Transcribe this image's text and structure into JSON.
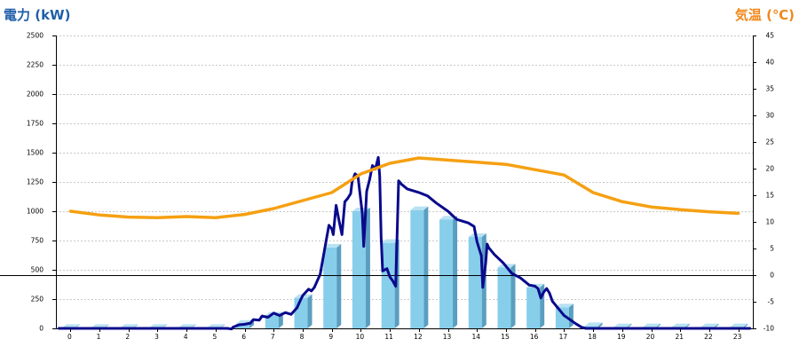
{
  "chart_data": {
    "type": "bar",
    "title_left": "電力 (kW)",
    "title_right": "気温 (℃)",
    "colors": {
      "title_left": "#1f5fa8",
      "title_right": "#f0881a",
      "bar_front": "#87ceeb",
      "bar_side": "#5a9ec0",
      "bar_top": "#b8e2f2",
      "power_line": "#0a0a8c",
      "temp_line": "#f5a012"
    },
    "left_axis": {
      "min": 0,
      "max": 2500,
      "step": 250,
      "ticks": [
        "0",
        "250",
        "500",
        "750",
        "1000",
        "1250",
        "1500",
        "1750",
        "2000",
        "2250",
        "2500"
      ]
    },
    "right_axis": {
      "min": -10,
      "max": 45,
      "step": 5,
      "ticks": [
        "-10",
        "-5",
        "0",
        "5",
        "10",
        "15",
        "20",
        "25",
        "30",
        "35",
        "40",
        "45"
      ]
    },
    "categories": [
      "0",
      "1",
      "2",
      "3",
      "4",
      "5",
      "6",
      "7",
      "8",
      "9",
      "10",
      "11",
      "12",
      "13",
      "14",
      "15",
      "16",
      "17",
      "18",
      "19",
      "20",
      "21",
      "22",
      "23"
    ],
    "grid": true,
    "series": [
      {
        "kind": "bar",
        "axis": "left",
        "values": [
          5,
          5,
          5,
          5,
          5,
          5,
          40,
          110,
          260,
          690,
          1000,
          730,
          1010,
          930,
          780,
          520,
          350,
          180,
          20,
          10,
          10,
          10,
          10,
          10
        ]
      },
      {
        "kind": "line",
        "axis": "left",
        "points": [
          [
            -0.4,
            0
          ],
          [
            5.4,
            0
          ],
          [
            5.55,
            -5
          ],
          [
            5.6,
            10
          ],
          [
            5.8,
            30
          ],
          [
            6.0,
            35
          ],
          [
            6.2,
            45
          ],
          [
            6.3,
            75
          ],
          [
            6.5,
            70
          ],
          [
            6.6,
            105
          ],
          [
            6.8,
            95
          ],
          [
            7.0,
            130
          ],
          [
            7.2,
            110
          ],
          [
            7.4,
            135
          ],
          [
            7.6,
            120
          ],
          [
            7.8,
            175
          ],
          [
            7.9,
            230
          ],
          [
            8.0,
            280
          ],
          [
            8.2,
            335
          ],
          [
            8.3,
            320
          ],
          [
            8.4,
            350
          ],
          [
            8.6,
            460
          ],
          [
            8.8,
            740
          ],
          [
            8.9,
            880
          ],
          [
            9.0,
            850
          ],
          [
            9.05,
            800
          ],
          [
            9.15,
            1050
          ],
          [
            9.25,
            920
          ],
          [
            9.35,
            800
          ],
          [
            9.45,
            1080
          ],
          [
            9.55,
            1110
          ],
          [
            9.65,
            1150
          ],
          [
            9.7,
            1250
          ],
          [
            9.8,
            1320
          ],
          [
            9.9,
            1300
          ],
          [
            10.05,
            980
          ],
          [
            10.1,
            700
          ],
          [
            10.2,
            1170
          ],
          [
            10.3,
            1270
          ],
          [
            10.4,
            1390
          ],
          [
            10.5,
            1360
          ],
          [
            10.6,
            1460
          ],
          [
            10.65,
            1300
          ],
          [
            10.7,
            780
          ],
          [
            10.75,
            490
          ],
          [
            10.9,
            510
          ],
          [
            11.0,
            440
          ],
          [
            11.1,
            405
          ],
          [
            11.2,
            360
          ],
          [
            11.3,
            1260
          ],
          [
            11.4,
            1230
          ],
          [
            11.6,
            1190
          ],
          [
            12.0,
            1160
          ],
          [
            12.3,
            1130
          ],
          [
            12.6,
            1070
          ],
          [
            13.0,
            1000
          ],
          [
            13.3,
            930
          ],
          [
            13.7,
            900
          ],
          [
            13.9,
            870
          ],
          [
            14.0,
            740
          ],
          [
            14.15,
            620
          ],
          [
            14.2,
            350
          ],
          [
            14.3,
            560
          ],
          [
            14.35,
            720
          ],
          [
            14.4,
            690
          ],
          [
            14.6,
            630
          ],
          [
            14.9,
            560
          ],
          [
            15.2,
            470
          ],
          [
            15.5,
            430
          ],
          [
            15.8,
            370
          ],
          [
            16.0,
            360
          ],
          [
            16.1,
            340
          ],
          [
            16.2,
            260
          ],
          [
            16.3,
            310
          ],
          [
            16.4,
            340
          ],
          [
            16.5,
            300
          ],
          [
            16.6,
            230
          ],
          [
            16.8,
            170
          ],
          [
            17.0,
            110
          ],
          [
            17.4,
            40
          ],
          [
            17.6,
            10
          ],
          [
            17.75,
            0
          ],
          [
            23.4,
            0
          ]
        ]
      },
      {
        "kind": "line",
        "axis": "right",
        "points": [
          [
            0,
            12
          ],
          [
            1,
            11.3
          ],
          [
            2,
            10.9
          ],
          [
            3,
            10.8
          ],
          [
            4,
            11.0
          ],
          [
            5,
            10.8
          ],
          [
            6,
            11.4
          ],
          [
            7,
            12.5
          ],
          [
            8,
            14
          ],
          [
            9,
            15.5
          ],
          [
            10,
            19
          ],
          [
            11,
            21
          ],
          [
            12,
            22
          ],
          [
            13,
            21.6
          ],
          [
            14,
            21.2
          ],
          [
            15,
            20.8
          ],
          [
            16,
            19.8
          ],
          [
            17,
            18.8
          ],
          [
            18,
            15.5
          ],
          [
            19,
            13.8
          ],
          [
            20,
            12.8
          ],
          [
            21,
            12.3
          ],
          [
            22,
            11.9
          ],
          [
            23,
            11.6
          ]
        ]
      }
    ]
  }
}
